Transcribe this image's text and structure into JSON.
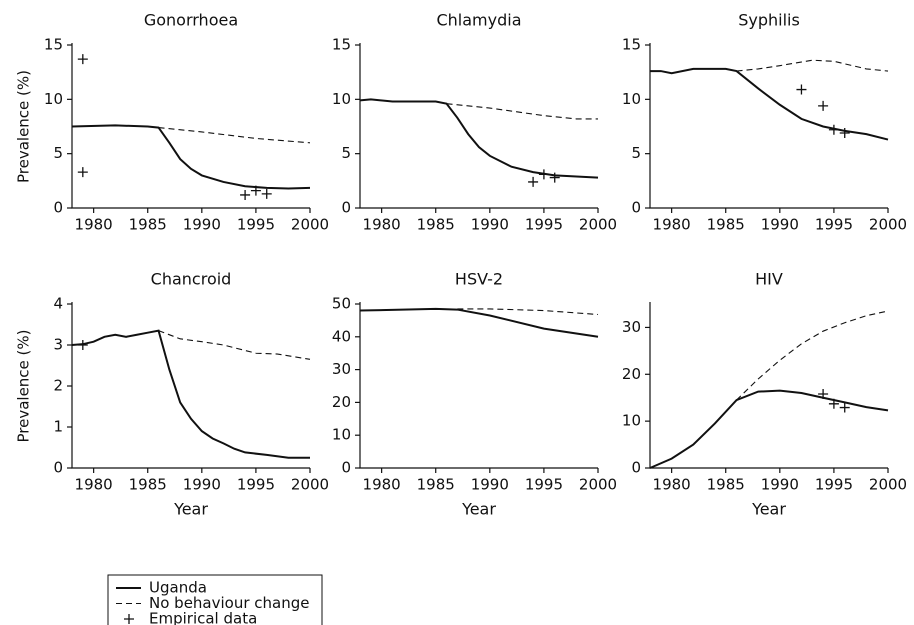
{
  "chart_data": [
    {
      "type": "line",
      "title": "Gonorrhoea",
      "ylabel": "Prevalence (%)",
      "xlim": [
        1978,
        2000
      ],
      "xticks": [
        1980,
        1985,
        1990,
        1995,
        2000
      ],
      "ylim": [
        0,
        15
      ],
      "yticks": [
        0,
        5,
        10,
        15
      ],
      "series": [
        {
          "style": "solid",
          "color": "#111111",
          "x": [
            1978,
            1982,
            1985,
            1986,
            1987,
            1988,
            1989,
            1990,
            1992,
            1994,
            1996,
            1998,
            2000
          ],
          "values": [
            7.5,
            7.6,
            7.5,
            7.4,
            6.0,
            4.5,
            3.6,
            3.0,
            2.4,
            2.0,
            1.85,
            1.8,
            1.85
          ]
        },
        {
          "style": "dashed",
          "color": "#111111",
          "x": [
            1986,
            1990,
            1995,
            2000
          ],
          "values": [
            7.4,
            7.0,
            6.4,
            6.0
          ]
        },
        {
          "style": "plus",
          "color": "#111111",
          "x": [
            1979,
            1979,
            1994,
            1995,
            1996
          ],
          "values": [
            13.7,
            3.3,
            1.2,
            1.6,
            1.3
          ]
        }
      ]
    },
    {
      "type": "line",
      "title": "Chlamydia",
      "xlim": [
        1978,
        2000
      ],
      "xticks": [
        1980,
        1985,
        1990,
        1995,
        2000
      ],
      "ylim": [
        0,
        15
      ],
      "yticks": [
        0,
        5,
        10,
        15
      ],
      "series": [
        {
          "style": "solid",
          "color": "#111111",
          "x": [
            1978,
            1979,
            1981,
            1985,
            1986,
            1987,
            1988,
            1989,
            1990,
            1992,
            1994,
            1996,
            1998,
            2000
          ],
          "values": [
            9.9,
            10.0,
            9.8,
            9.8,
            9.6,
            8.3,
            6.8,
            5.6,
            4.8,
            3.8,
            3.3,
            3.0,
            2.9,
            2.8
          ]
        },
        {
          "style": "dashed",
          "color": "#111111",
          "x": [
            1986,
            1990,
            1995,
            1998,
            2000
          ],
          "values": [
            9.6,
            9.2,
            8.5,
            8.2,
            8.2
          ]
        },
        {
          "style": "plus",
          "color": "#111111",
          "x": [
            1994,
            1995,
            1996
          ],
          "values": [
            2.4,
            3.1,
            2.8
          ]
        }
      ]
    },
    {
      "type": "line",
      "title": "Syphilis",
      "xlim": [
        1978,
        2000
      ],
      "xticks": [
        1980,
        1985,
        1990,
        1995,
        2000
      ],
      "ylim": [
        0,
        15
      ],
      "yticks": [
        0,
        5,
        10,
        15
      ],
      "series": [
        {
          "style": "solid",
          "color": "#111111",
          "x": [
            1978,
            1979,
            1980,
            1982,
            1985,
            1986,
            1988,
            1990,
            1992,
            1994,
            1996,
            1998,
            2000
          ],
          "values": [
            12.6,
            12.6,
            12.4,
            12.8,
            12.8,
            12.6,
            11.0,
            9.5,
            8.2,
            7.5,
            7.1,
            6.8,
            6.3
          ]
        },
        {
          "style": "dashed",
          "color": "#111111",
          "x": [
            1986,
            1988,
            1990,
            1993,
            1995,
            1998,
            2000
          ],
          "values": [
            12.6,
            12.8,
            13.1,
            13.6,
            13.5,
            12.8,
            12.6
          ]
        },
        {
          "style": "plus",
          "color": "#111111",
          "x": [
            1992,
            1994,
            1995,
            1996
          ],
          "values": [
            10.9,
            9.4,
            7.2,
            6.9
          ]
        }
      ]
    },
    {
      "type": "line",
      "title": "Chancroid",
      "ylabel": "Prevalence (%)",
      "xlabel": "Year",
      "xlim": [
        1978,
        2000
      ],
      "xticks": [
        1980,
        1985,
        1990,
        1995,
        2000
      ],
      "ylim": [
        0,
        4
      ],
      "yticks": [
        0,
        1,
        2,
        3,
        4
      ],
      "series": [
        {
          "style": "solid",
          "color": "#111111",
          "x": [
            1978,
            1979,
            1980,
            1981,
            1982,
            1983,
            1984,
            1985,
            1986,
            1987,
            1988,
            1989,
            1990,
            1991,
            1992,
            1993,
            1994,
            1996,
            1998,
            2000
          ],
          "values": [
            3.0,
            3.02,
            3.08,
            3.2,
            3.25,
            3.2,
            3.25,
            3.3,
            3.35,
            2.4,
            1.6,
            1.2,
            0.9,
            0.72,
            0.6,
            0.47,
            0.38,
            0.32,
            0.25,
            0.25
          ]
        },
        {
          "style": "dashed",
          "color": "#111111",
          "x": [
            1986,
            1988,
            1990,
            1992,
            1995,
            1997,
            2000
          ],
          "values": [
            3.35,
            3.15,
            3.08,
            3.0,
            2.8,
            2.78,
            2.65
          ]
        },
        {
          "style": "plus",
          "color": "#111111",
          "x": [
            1979
          ],
          "values": [
            3.0
          ]
        }
      ]
    },
    {
      "type": "line",
      "title": "HSV-2",
      "xlabel": "Year",
      "xlim": [
        1978,
        2000
      ],
      "xticks": [
        1980,
        1985,
        1990,
        1995,
        2000
      ],
      "ylim": [
        0,
        50
      ],
      "yticks": [
        0,
        10,
        20,
        30,
        40,
        50
      ],
      "series": [
        {
          "style": "solid",
          "color": "#111111",
          "x": [
            1978,
            1985,
            1987,
            1990,
            1995,
            2000
          ],
          "values": [
            48,
            48.5,
            48.3,
            46.5,
            42.5,
            40
          ]
        },
        {
          "style": "dashed",
          "color": "#111111",
          "x": [
            1987,
            1990,
            1995,
            2000
          ],
          "values": [
            48.5,
            48.5,
            48,
            46.8
          ]
        }
      ]
    },
    {
      "type": "line",
      "title": "HIV",
      "xlabel": "Year",
      "xlim": [
        1978,
        2000
      ],
      "xticks": [
        1980,
        1985,
        1990,
        1995,
        2000
      ],
      "ylim": [
        0,
        35
      ],
      "yticks": [
        0,
        10,
        20,
        30
      ],
      "series": [
        {
          "style": "solid",
          "color": "#111111",
          "x": [
            1978,
            1980,
            1982,
            1984,
            1986,
            1988,
            1990,
            1992,
            1994,
            1996,
            1998,
            2000
          ],
          "values": [
            0,
            2,
            5,
            9.5,
            14.5,
            16.3,
            16.5,
            16.0,
            15.0,
            14.0,
            13.0,
            12.3
          ]
        },
        {
          "style": "dashed",
          "color": "#111111",
          "x": [
            1986,
            1988,
            1990,
            1992,
            1994,
            1996,
            1998,
            2000
          ],
          "values": [
            14.5,
            19,
            23,
            26.5,
            29.2,
            31,
            32.5,
            33.5
          ]
        },
        {
          "style": "plus",
          "color": "#111111",
          "x": [
            1994,
            1995,
            1996
          ],
          "values": [
            15.8,
            13.7,
            12.9
          ]
        }
      ]
    }
  ],
  "legend": [
    {
      "label": "Uganda",
      "style": "solid"
    },
    {
      "label": "No behaviour change",
      "style": "dashed"
    },
    {
      "label": "Empirical data",
      "style": "plus"
    }
  ]
}
